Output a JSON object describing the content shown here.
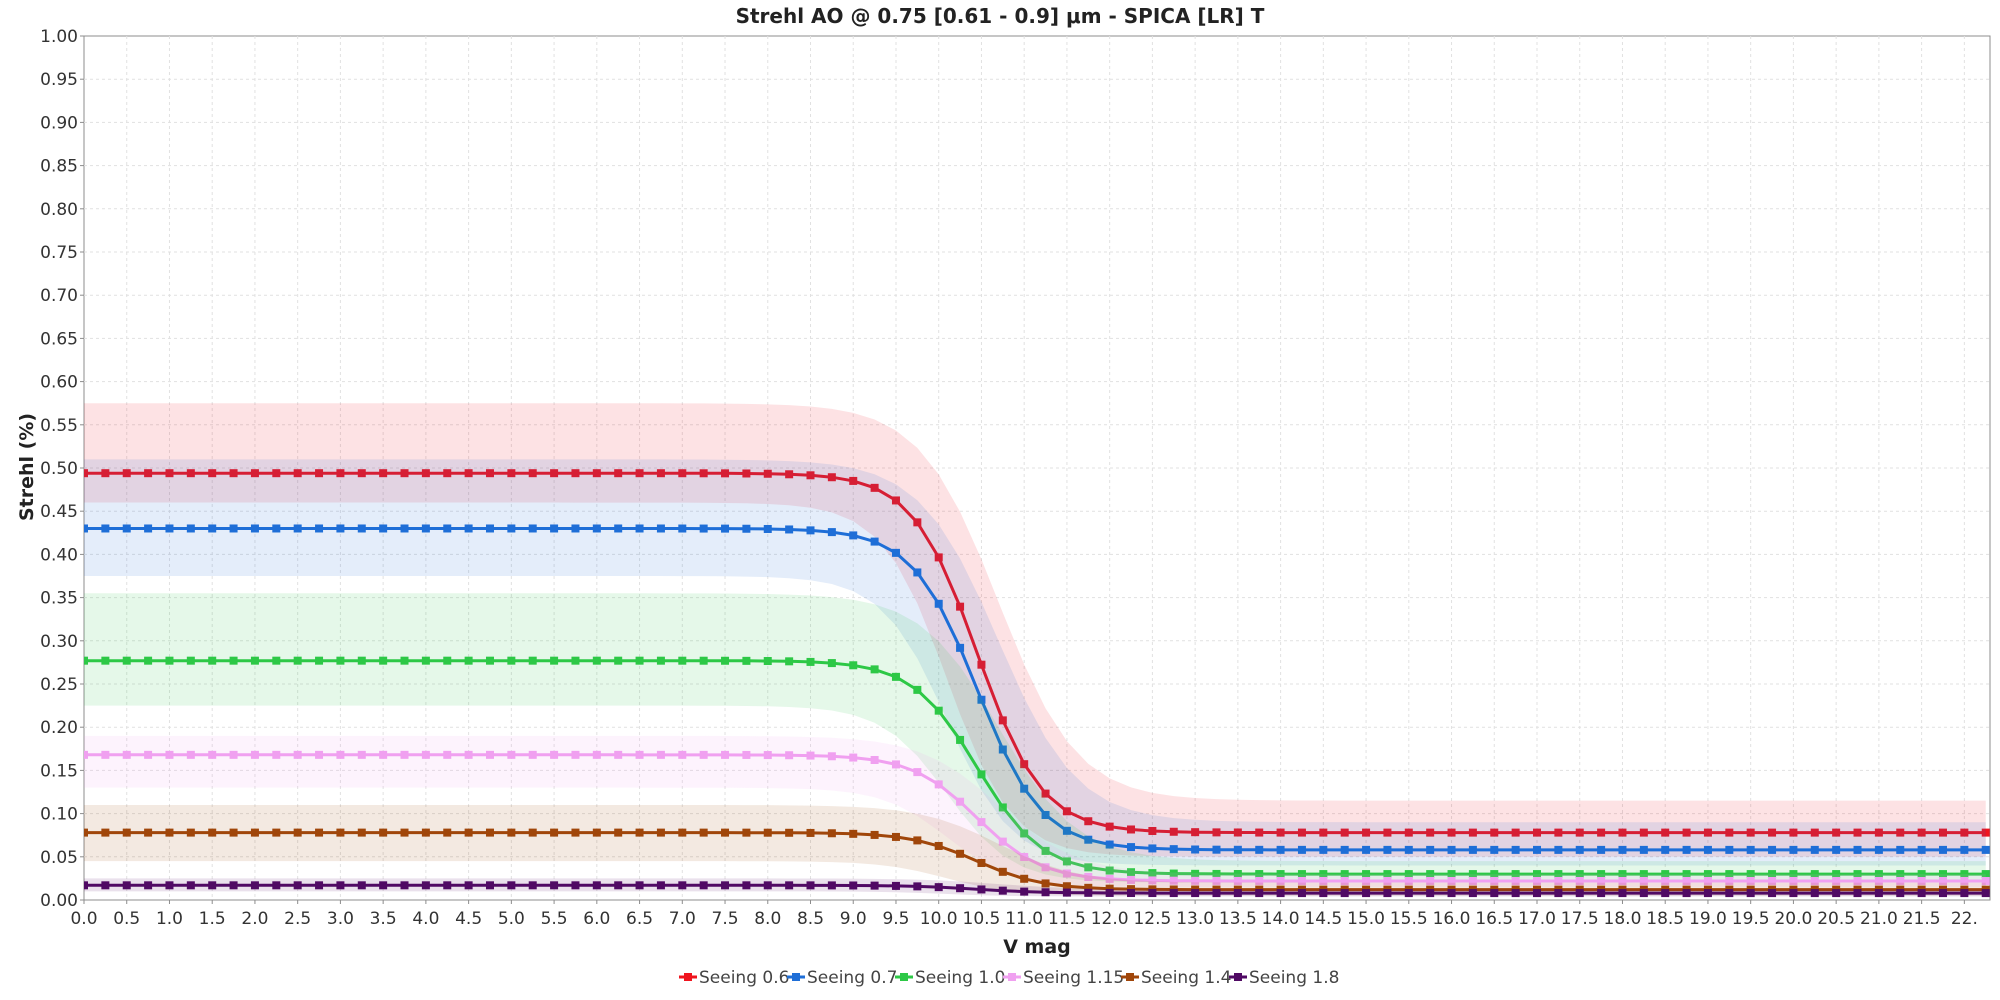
{
  "chart_data": {
    "type": "line",
    "title": "Strehl AO @ 0.75 [0.61 - 0.9] μm - SPICA [LR] T",
    "xlabel": "V mag",
    "ylabel": "Strehl (%)",
    "xlim": [
      0,
      22.3
    ],
    "ylim": [
      0,
      1.0
    ],
    "x_ticks": [
      "0.0",
      "0.5",
      "1.0",
      "1.5",
      "2.0",
      "2.5",
      "3.0",
      "3.5",
      "4.0",
      "4.5",
      "5.0",
      "5.5",
      "6.0",
      "6.5",
      "7.0",
      "7.5",
      "8.0",
      "8.5",
      "9.0",
      "9.5",
      "10.0",
      "10.5",
      "11.0",
      "11.5",
      "12.0",
      "12.5",
      "13.0",
      "13.5",
      "14.0",
      "14.5",
      "15.0",
      "15.5",
      "16.0",
      "16.5",
      "17.0",
      "17.5",
      "18.0",
      "18.5",
      "19.0",
      "19.5",
      "20.0",
      "20.5",
      "21.0",
      "21.5",
      "22."
    ],
    "y_ticks": [
      "0.00",
      "0.05",
      "0.10",
      "0.15",
      "0.20",
      "0.25",
      "0.30",
      "0.35",
      "0.40",
      "0.45",
      "0.50",
      "0.55",
      "0.60",
      "0.65",
      "0.70",
      "0.75",
      "0.80",
      "0.85",
      "0.90",
      "0.95",
      "1.00"
    ],
    "grid": true,
    "legend_position": "bottom",
    "marker": "square",
    "x_step": 0.25,
    "band": "shaded range around each series",
    "series": [
      {
        "name": "Seeing 0.6",
        "color": "#f0141e",
        "plateau": 0.494,
        "floor": 0.078,
        "band_low": 0.46,
        "band_high": 0.575,
        "band_floor_low": 0.05,
        "band_floor_high": 0.115
      },
      {
        "name": "Seeing 0.7",
        "color": "#1e6ed7",
        "plateau": 0.43,
        "floor": 0.058,
        "band_low": 0.375,
        "band_high": 0.51,
        "band_floor_low": 0.04,
        "band_floor_high": 0.09
      },
      {
        "name": "Seeing 1.0",
        "color": "#2dc846",
        "plateau": 0.277,
        "floor": 0.03,
        "band_low": 0.225,
        "band_high": 0.355,
        "band_floor_low": 0.02,
        "band_floor_high": 0.045
      },
      {
        "name": "Seeing 1.15",
        "color": "#f0a0f0",
        "plateau": 0.168,
        "floor": 0.022,
        "band_low": 0.13,
        "band_high": 0.19,
        "band_floor_low": 0.015,
        "band_floor_high": 0.03
      },
      {
        "name": "Seeing 1.4",
        "color": "#a0460a",
        "plateau": 0.078,
        "floor": 0.012,
        "band_low": 0.045,
        "band_high": 0.11,
        "band_floor_low": 0.005,
        "band_floor_high": 0.02
      },
      {
        "name": "Seeing 1.8",
        "color": "#500a64",
        "plateau": 0.017,
        "floor": 0.008,
        "band_low": 0.01,
        "band_high": 0.025,
        "band_floor_low": 0.004,
        "band_floor_high": 0.012
      }
    ]
  }
}
